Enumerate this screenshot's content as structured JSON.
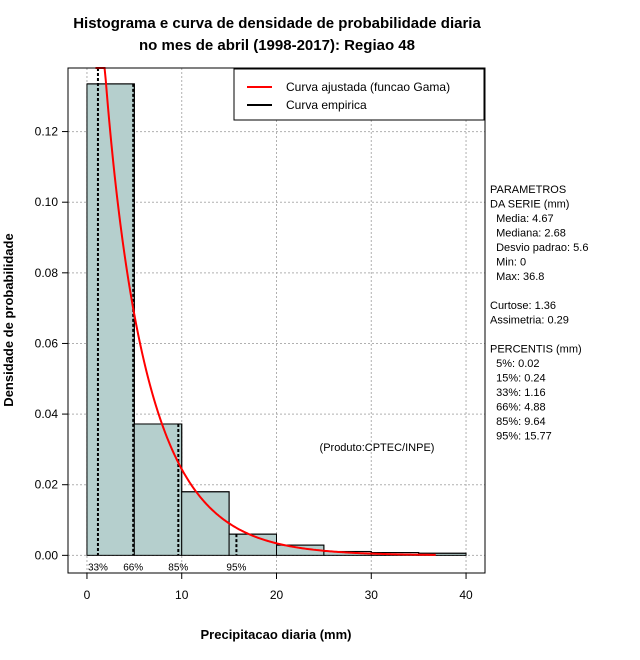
{
  "chart_data": {
    "type": "histogram",
    "title_lines": [
      "Histograma e curva de densidade de probabilidade diaria",
      "no mes de abril (1998-2017): Regiao 48"
    ],
    "xlabel": "Precipitacao diaria (mm)",
    "ylabel": "Densidade de probabilidade",
    "xlim": [
      -2,
      42
    ],
    "ylim": [
      -0.005,
      0.138
    ],
    "xticks": [
      0,
      10,
      20,
      30,
      40
    ],
    "yticks": [
      0.0,
      0.02,
      0.04,
      0.06,
      0.08,
      0.1,
      0.12
    ],
    "ytick_labels": [
      "0.00",
      "0.02",
      "0.04",
      "0.06",
      "0.08",
      "0.10",
      "0.12"
    ],
    "bins": [
      {
        "x0": 0,
        "x1": 5,
        "density": 0.1335
      },
      {
        "x0": 5,
        "x1": 10,
        "density": 0.0372
      },
      {
        "x0": 10,
        "x1": 15,
        "density": 0.018
      },
      {
        "x0": 15,
        "x1": 20,
        "density": 0.006
      },
      {
        "x0": 20,
        "x1": 25,
        "density": 0.0029
      },
      {
        "x0": 25,
        "x1": 30,
        "density": 0.0011
      },
      {
        "x0": 30,
        "x1": 35,
        "density": 0.0008
      },
      {
        "x0": 35,
        "x1": 40,
        "density": 0.0006
      }
    ],
    "gamma_curve": {
      "shape": 0.88,
      "scale": 5.3,
      "x_from": 0.9,
      "x_to": 36.8,
      "color": "#ff0000"
    },
    "empirical_color": "#000000",
    "bar_fill": "#b5cfcd",
    "percentile_lines": [
      {
        "x": 1.16,
        "label": "33%"
      },
      {
        "x": 4.88,
        "label": "66%"
      },
      {
        "x": 9.64,
        "label": "85%"
      },
      {
        "x": 15.77,
        "label": "95%"
      }
    ],
    "legend": [
      {
        "label": "Curva ajustada (funcao Gama)",
        "color": "#ff0000"
      },
      {
        "label": "Curva empirica",
        "color": "#000000"
      }
    ],
    "annotation": "(Produto:CPTEC/INPE)",
    "side_panel": [
      "PARAMETROS",
      "DA SERIE (mm)",
      "  Media: 4.67",
      "  Mediana: 2.68",
      "  Desvio padrao: 5.6",
      "  Min: 0",
      "  Max: 36.8",
      "",
      "Curtose: 1.36",
      "Assimetria: 0.29",
      "",
      "PERCENTIS (mm)",
      "  5%: 0.02",
      "  15%: 0.24",
      "  33%: 1.16",
      "  66%: 4.88",
      "  85%: 9.64",
      "  95%: 15.77"
    ]
  }
}
